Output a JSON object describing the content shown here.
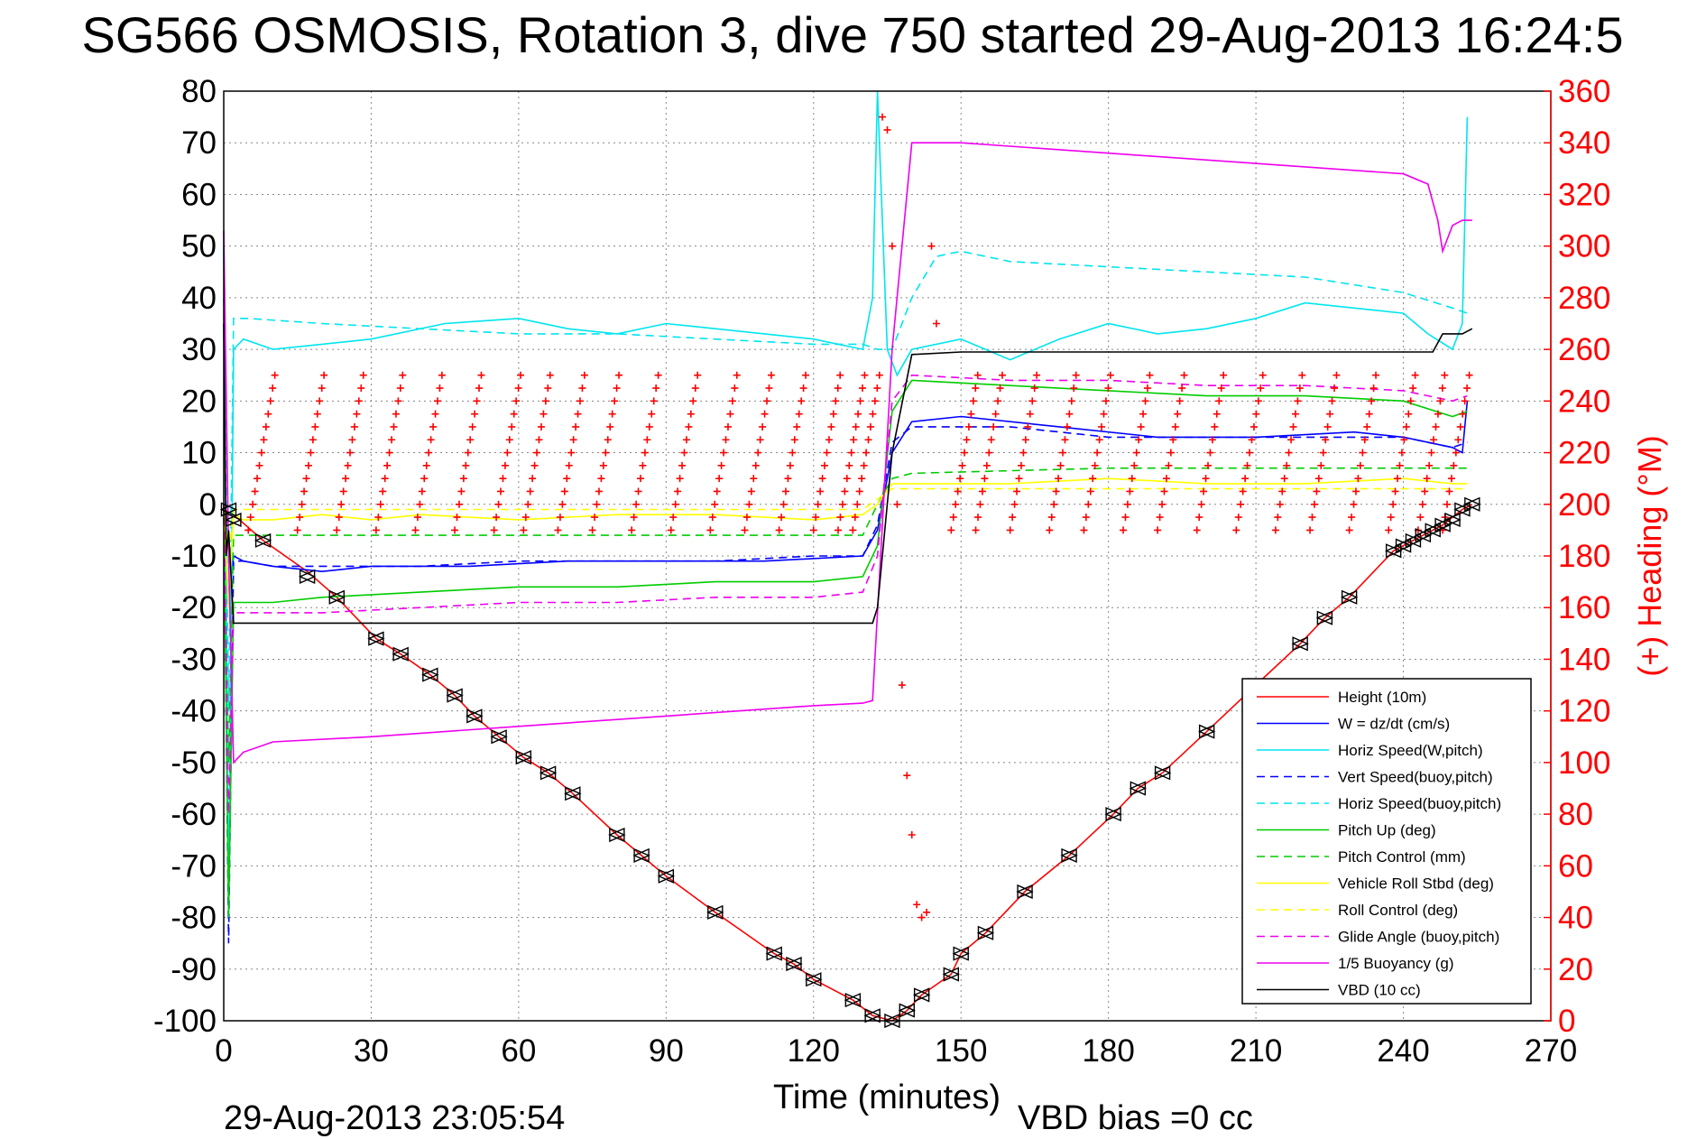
{
  "chart_data": {
    "type": "line",
    "title": "SG566 OSMOSIS, Rotation 3, dive 750 started 29-Aug-2013 16:24:5",
    "xlabel": "Time (minutes)",
    "ylabel_right": "(+) Heading (°M)",
    "xlim": [
      0,
      270
    ],
    "ylim": [
      -100,
      80
    ],
    "ylim_right": [
      0,
      360
    ],
    "xticks": [
      "0",
      "30",
      "60",
      "90",
      "120",
      "150",
      "180",
      "210",
      "240",
      "270"
    ],
    "yticks": [
      "80",
      "70",
      "60",
      "50",
      "40",
      "30",
      "20",
      "10",
      "0",
      "-10",
      "-20",
      "-30",
      "-40",
      "-50",
      "-60",
      "-70",
      "-80",
      "-90",
      "-100"
    ],
    "yticks_right": [
      "360",
      "340",
      "320",
      "300",
      "280",
      "260",
      "240",
      "220",
      "200",
      "180",
      "160",
      "140",
      "120",
      "100",
      "80",
      "60",
      "40",
      "20",
      "0"
    ],
    "grid": true,
    "legend_position": "bottom-right",
    "footer_left": "29-Aug-2013 23:05:54",
    "footer_right": "VBD bias =0 cc",
    "series": [
      {
        "name": "Height (10m)",
        "color": "#ff0000",
        "style": "solid",
        "x": [
          0,
          2,
          8,
          17,
          23,
          31,
          36,
          42,
          47,
          51,
          56,
          61,
          66,
          71,
          80,
          85,
          90,
          100,
          112,
          116,
          120,
          128,
          132,
          136,
          139,
          142,
          148,
          150,
          155,
          163,
          172,
          181,
          186,
          191,
          200,
          210,
          219,
          224,
          229,
          238,
          244,
          248,
          252,
          254
        ],
        "y": [
          -1,
          -2,
          -7,
          -13,
          -18,
          -26,
          -29,
          -33,
          -37,
          -41,
          -45,
          -49,
          -52,
          -56,
          -64,
          -68,
          -72,
          -79,
          -87,
          -89,
          -92,
          -96,
          -99,
          -100,
          -98,
          -95,
          -91,
          -87,
          -83,
          -75,
          -68,
          -60,
          -55,
          -52,
          -44,
          -35,
          -27,
          -22,
          -18,
          -9,
          -6,
          -4,
          -1,
          0
        ]
      },
      {
        "name": "W = dz/dt (cm/s)",
        "color": "#0000ff",
        "style": "solid",
        "x": [
          0,
          1,
          2,
          4,
          10,
          20,
          30,
          50,
          70,
          90,
          110,
          130,
          133,
          136,
          140,
          150,
          170,
          190,
          210,
          230,
          240,
          250,
          252,
          253
        ],
        "y": [
          0,
          -20,
          -10,
          -11,
          -12,
          -13,
          -12,
          -12,
          -11,
          -11,
          -11,
          -10,
          -5,
          10,
          16,
          17,
          15,
          13,
          13,
          14,
          13,
          11,
          10,
          20
        ]
      },
      {
        "name": "Horiz Speed(W,pitch)",
        "color": "#00e5ee",
        "style": "solid",
        "x": [
          0,
          1,
          2,
          4,
          10,
          20,
          30,
          45,
          60,
          70,
          80,
          90,
          100,
          110,
          120,
          130,
          132,
          133,
          135,
          137,
          140,
          150,
          160,
          170,
          180,
          190,
          200,
          210,
          220,
          230,
          240,
          245,
          250,
          252,
          253
        ],
        "y": [
          50,
          -80,
          30,
          32,
          30,
          31,
          32,
          35,
          36,
          34,
          33,
          35,
          34,
          33,
          32,
          30,
          40,
          80,
          30,
          25,
          30,
          32,
          28,
          32,
          35,
          33,
          34,
          36,
          39,
          38,
          37,
          33,
          30,
          35,
          75
        ]
      },
      {
        "name": "Vert Speed(buoy,pitch)",
        "color": "#0000ff",
        "style": "dashed",
        "x": [
          0,
          1,
          2,
          4,
          10,
          20,
          40,
          60,
          80,
          100,
          120,
          130,
          133,
          136,
          140,
          160,
          180,
          200,
          220,
          240,
          250,
          253
        ],
        "y": [
          0,
          -85,
          -11,
          -11,
          -12,
          -12,
          -12,
          -11,
          -11,
          -11,
          -10,
          -10,
          -4,
          12,
          15,
          15,
          13,
          13,
          13,
          13,
          11,
          12
        ]
      },
      {
        "name": "Horiz Speed(buoy,pitch)",
        "color": "#00e5ee",
        "style": "dashed",
        "x": [
          0,
          1,
          2,
          5,
          20,
          40,
          60,
          80,
          100,
          120,
          130,
          133,
          136,
          140,
          145,
          150,
          160,
          180,
          200,
          220,
          240,
          250,
          253
        ],
        "y": [
          40,
          -40,
          36,
          36,
          35,
          34,
          33,
          33,
          32,
          31,
          31,
          30,
          30,
          40,
          48,
          49,
          47,
          46,
          45,
          44,
          41,
          38,
          37
        ]
      },
      {
        "name": "Pitch Up (deg)",
        "color": "#00cc00",
        "style": "solid",
        "x": [
          0,
          1,
          2,
          4,
          10,
          20,
          40,
          60,
          80,
          100,
          120,
          130,
          133,
          136,
          140,
          160,
          180,
          200,
          220,
          240,
          250,
          253
        ],
        "y": [
          0,
          -80,
          -19,
          -19,
          -19,
          -18,
          -17,
          -16,
          -16,
          -15,
          -15,
          -14,
          -8,
          18,
          24,
          23,
          22,
          21,
          21,
          20,
          17,
          18
        ]
      },
      {
        "name": "Pitch Control (mm)",
        "color": "#00cc00",
        "style": "dashed",
        "x": [
          0,
          1,
          2,
          4,
          20,
          60,
          100,
          130,
          133,
          136,
          140,
          180,
          220,
          240,
          253
        ],
        "y": [
          0,
          -50,
          -6,
          -6,
          -6,
          -6,
          -6,
          -6,
          0,
          5,
          6,
          7,
          7,
          7,
          7
        ]
      },
      {
        "name": "Vehicle Roll Stbd (deg)",
        "color": "#ffff00",
        "style": "solid",
        "x": [
          0,
          1,
          2,
          4,
          10,
          20,
          30,
          40,
          60,
          80,
          100,
          120,
          130,
          133,
          136,
          140,
          160,
          180,
          200,
          220,
          240,
          250,
          253
        ],
        "y": [
          0,
          -20,
          -2,
          -3,
          -3,
          -2,
          -3,
          -2,
          -3,
          -2,
          -2,
          -3,
          -2,
          0,
          4,
          4,
          4,
          5,
          4,
          4,
          5,
          4,
          4
        ]
      },
      {
        "name": "Roll Control (deg)",
        "color": "#ffff00",
        "style": "dashed",
        "x": [
          0,
          1,
          2,
          4,
          20,
          60,
          100,
          130,
          133,
          136,
          140,
          180,
          220,
          253
        ],
        "y": [
          0,
          -10,
          -1,
          -1,
          -1,
          -1,
          -1,
          -1,
          1,
          3,
          3,
          3,
          3,
          3
        ]
      },
      {
        "name": "Glide Angle (buoy,pitch)",
        "color": "#ee00ee",
        "style": "dashed",
        "x": [
          0,
          1,
          2,
          4,
          10,
          20,
          40,
          60,
          80,
          100,
          120,
          130,
          133,
          136,
          140,
          160,
          180,
          200,
          220,
          240,
          250,
          253
        ],
        "y": [
          0,
          -60,
          -21,
          -21,
          -21,
          -21,
          -20,
          -19,
          -19,
          -18,
          -18,
          -17,
          -10,
          20,
          25,
          24,
          24,
          23,
          23,
          22,
          20,
          21
        ]
      },
      {
        "name": "1/5 Buoyancy (g)",
        "color": "#ee00ee",
        "style": "solid",
        "x": [
          0,
          1,
          2,
          4,
          10,
          30,
          60,
          90,
          120,
          130,
          132,
          136,
          140,
          150,
          180,
          210,
          240,
          245,
          247,
          248,
          250,
          252,
          254
        ],
        "y": [
          53,
          -10,
          -50,
          -48,
          -46,
          -45,
          -43,
          -41,
          -39,
          -38.5,
          -38,
          30,
          70,
          70,
          68,
          66,
          64,
          62,
          55,
          49,
          54,
          55,
          55
        ]
      },
      {
        "name": "VBD (10 cc)",
        "color": "#000000",
        "style": "solid",
        "x": [
          0,
          0.5,
          1,
          2,
          4,
          132,
          133,
          136,
          140,
          150,
          180,
          210,
          240,
          246,
          248,
          250,
          252,
          254
        ],
        "y": [
          35,
          -10,
          -5,
          -23,
          -23,
          -23,
          -20,
          10,
          29,
          29.5,
          29.5,
          29.5,
          29.5,
          29.5,
          33,
          33,
          33,
          34
        ]
      }
    ],
    "markers": {
      "name": "depth samples",
      "x": [
        1,
        2,
        8,
        17,
        23,
        31,
        36,
        42,
        47,
        51,
        56,
        61,
        66,
        71,
        80,
        85,
        90,
        100,
        112,
        116,
        120,
        128,
        132,
        136,
        139,
        142,
        148,
        150,
        155,
        163,
        172,
        181,
        186,
        191,
        200,
        210,
        219,
        224,
        229,
        238,
        240,
        242,
        244,
        246,
        248,
        250,
        252,
        254
      ],
      "y": [
        -1,
        -3,
        -7,
        -14,
        -18,
        -26,
        -29,
        -33,
        -37,
        -41,
        -45,
        -49,
        -52,
        -56,
        -64,
        -68,
        -72,
        -79,
        -87,
        -89,
        -92,
        -96,
        -99,
        -100,
        -98,
        -95,
        -91,
        -87,
        -83,
        -75,
        -68,
        -60,
        -55,
        -52,
        -44,
        -35,
        -27,
        -22,
        -18,
        -9,
        -8,
        -7,
        -6,
        -5,
        -4,
        -3,
        -1,
        0
      ]
    },
    "heading": {
      "name": "(+) Heading",
      "color": "#ff0000",
      "axis": "right",
      "sawtooth_starts_x": [
        5,
        15,
        23,
        31,
        39,
        47,
        55,
        61,
        68,
        75,
        83,
        91,
        99,
        106,
        113,
        120,
        125,
        128
      ],
      "sawtooth_low": 190,
      "sawtooth_high": 250,
      "sawtooth_starts_x_2": [
        148,
        153,
        160,
        168,
        175,
        183,
        190,
        198,
        206,
        214,
        221,
        229,
        237,
        243,
        248
      ],
      "isolated_x": [
        134,
        135,
        136,
        137,
        138,
        139,
        140,
        141,
        142,
        143,
        144,
        145
      ],
      "isolated_y": [
        350,
        345,
        300,
        200,
        130,
        95,
        72,
        45,
        40,
        42,
        300,
        270
      ]
    }
  }
}
